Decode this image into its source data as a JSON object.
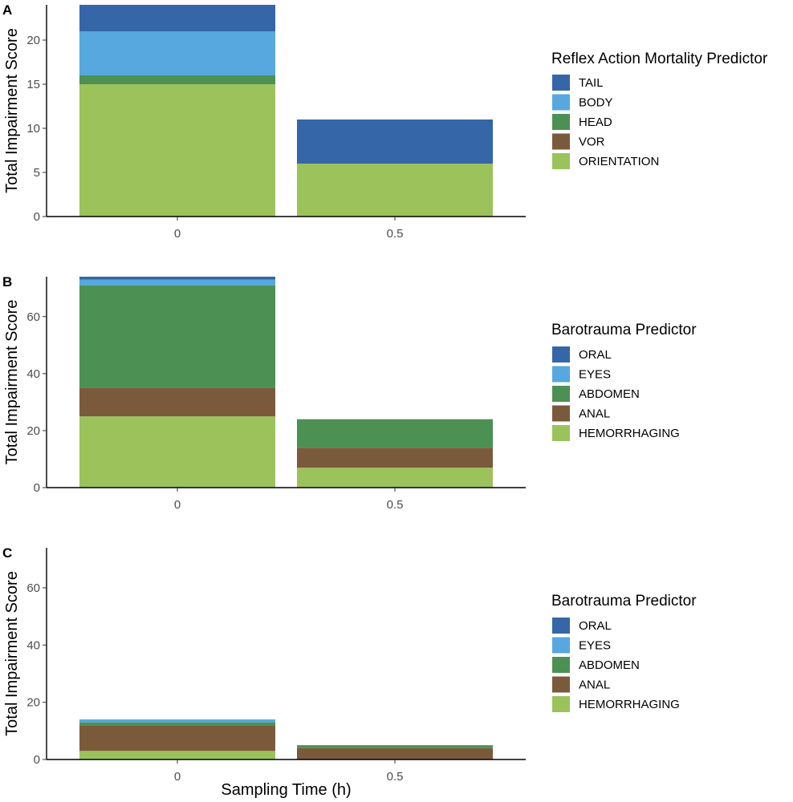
{
  "chart_data": [
    {
      "type": "bar",
      "stacked": true,
      "panel_label": "A",
      "title": "",
      "xlabel": "",
      "ylabel": "Total Impairment Score",
      "categories": [
        "0",
        "0.5"
      ],
      "ylim": [
        0,
        24
      ],
      "yticks": [
        0,
        5,
        10,
        15,
        20
      ],
      "legend_title": "Reflex Action Mortality Predictor",
      "series": [
        {
          "name": "TAIL",
          "color": "#3566a8",
          "values": [
            3,
            5
          ]
        },
        {
          "name": "BODY",
          "color": "#56a8de",
          "values": [
            5,
            0
          ]
        },
        {
          "name": "HEAD",
          "color": "#4c9153",
          "values": [
            1,
            0
          ]
        },
        {
          "name": "VOR",
          "color": "#7b5a3c",
          "values": [
            0,
            0
          ]
        },
        {
          "name": "ORIENTATION",
          "color": "#9cc25b",
          "values": [
            15,
            6
          ]
        }
      ]
    },
    {
      "type": "bar",
      "stacked": true,
      "panel_label": "B",
      "title": "",
      "xlabel": "",
      "ylabel": "Total Impairment Score",
      "categories": [
        "0",
        "0.5"
      ],
      "ylim": [
        0,
        74
      ],
      "yticks": [
        0,
        20,
        40,
        60
      ],
      "legend_title": "Barotrauma Predictor",
      "series": [
        {
          "name": "ORAL",
          "color": "#3566a8",
          "values": [
            1,
            0
          ]
        },
        {
          "name": "EYES",
          "color": "#56a8de",
          "values": [
            2,
            0
          ]
        },
        {
          "name": "ABDOMEN",
          "color": "#4c9153",
          "values": [
            36,
            10
          ]
        },
        {
          "name": "ANAL",
          "color": "#7b5a3c",
          "values": [
            10,
            7
          ]
        },
        {
          "name": "HEMORRHAGING",
          "color": "#9cc25b",
          "values": [
            25,
            7
          ]
        }
      ]
    },
    {
      "type": "bar",
      "stacked": true,
      "panel_label": "C",
      "title": "",
      "xlabel": "Sampling Time (h)",
      "ylabel": "Total Impairment Score",
      "categories": [
        "0",
        "0.5"
      ],
      "ylim": [
        0,
        74
      ],
      "yticks": [
        0,
        20,
        40,
        60
      ],
      "legend_title": "Barotrauma Predictor",
      "series": [
        {
          "name": "ORAL",
          "color": "#3566a8",
          "values": [
            0,
            0
          ]
        },
        {
          "name": "EYES",
          "color": "#56a8de",
          "values": [
            1,
            0
          ]
        },
        {
          "name": "ABDOMEN",
          "color": "#4c9153",
          "values": [
            1,
            1
          ]
        },
        {
          "name": "ANAL",
          "color": "#7b5a3c",
          "values": [
            9,
            4
          ]
        },
        {
          "name": "HEMORRHAGING",
          "color": "#9cc25b",
          "values": [
            3,
            0
          ]
        }
      ]
    }
  ]
}
